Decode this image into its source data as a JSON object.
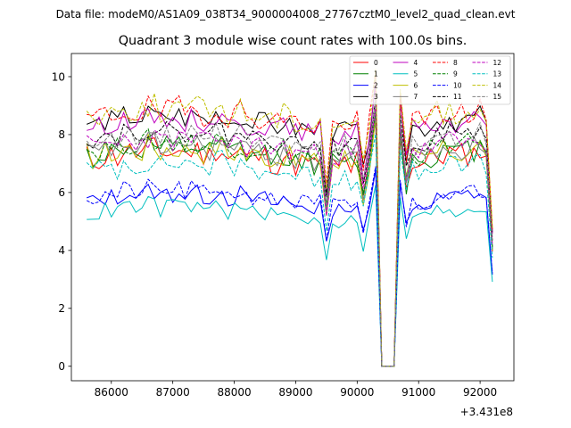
{
  "chart_data": {
    "type": "line",
    "suptitle": "Data file: modeM0/AS1A09_038T34_9000004008_27767cztM0_level2_quad_clean.evt",
    "title": "Quadrant 3 module wise count rates with 100.0s bins.",
    "xlabel": "",
    "ylabel": "",
    "offset_label": "+3.431e8",
    "xlim": [
      85350,
      92550
    ],
    "ylim": [
      -0.5,
      10.8
    ],
    "xticks": [
      86000,
      87000,
      88000,
      89000,
      90000,
      91000,
      92000
    ],
    "xtick_labels": [
      "86000",
      "87000",
      "88000",
      "89000",
      "90000",
      "91000",
      "92000"
    ],
    "yticks": [
      0,
      2,
      4,
      6,
      8,
      10
    ],
    "ytick_labels": [
      "0",
      "2",
      "4",
      "6",
      "8",
      "10"
    ],
    "x_start": 85600,
    "x_step": 100,
    "bins": 67,
    "gap_start_index": 48,
    "gap_length": 2,
    "legend_position": "upper-right",
    "series": [
      {
        "name": "0",
        "color": "#ff0000",
        "dash": false,
        "base": 7.2,
        "noise": 0.45,
        "seed": 11
      },
      {
        "name": "1",
        "color": "#008000",
        "dash": false,
        "base": 7.3,
        "noise": 0.4,
        "seed": 12
      },
      {
        "name": "2",
        "color": "#0000ff",
        "dash": false,
        "base": 5.75,
        "noise": 0.3,
        "seed": 13
      },
      {
        "name": "3",
        "color": "#000000",
        "dash": false,
        "base": 8.4,
        "noise": 0.35,
        "seed": 14
      },
      {
        "name": "4",
        "color": "#bf00bf",
        "dash": false,
        "base": 8.3,
        "noise": 0.35,
        "seed": 15
      },
      {
        "name": "5",
        "color": "#00bfbf",
        "dash": false,
        "base": 5.3,
        "noise": 0.3,
        "seed": 16
      },
      {
        "name": "6",
        "color": "#bfbf00",
        "dash": false,
        "base": 7.3,
        "noise": 0.45,
        "seed": 17
      },
      {
        "name": "7",
        "color": "#808080",
        "dash": false,
        "base": 7.4,
        "noise": 0.4,
        "seed": 18
      },
      {
        "name": "8",
        "color": "#ff0000",
        "dash": true,
        "base": 8.6,
        "noise": 0.45,
        "seed": 19
      },
      {
        "name": "9",
        "color": "#008000",
        "dash": true,
        "base": 7.5,
        "noise": 0.4,
        "seed": 20
      },
      {
        "name": "10",
        "color": "#0000ff",
        "dash": true,
        "base": 5.85,
        "noise": 0.3,
        "seed": 21
      },
      {
        "name": "11",
        "color": "#000000",
        "dash": true,
        "base": 7.9,
        "noise": 0.3,
        "seed": 22
      },
      {
        "name": "12",
        "color": "#bf00bf",
        "dash": true,
        "base": 7.6,
        "noise": 0.4,
        "seed": 23
      },
      {
        "name": "13",
        "color": "#00bfbf",
        "dash": true,
        "base": 6.8,
        "noise": 0.4,
        "seed": 24
      },
      {
        "name": "14",
        "color": "#bfbf00",
        "dash": true,
        "base": 8.7,
        "noise": 0.45,
        "seed": 25
      },
      {
        "name": "15",
        "color": "#808080",
        "dash": true,
        "base": 7.8,
        "noise": 0.35,
        "seed": 26
      }
    ]
  }
}
